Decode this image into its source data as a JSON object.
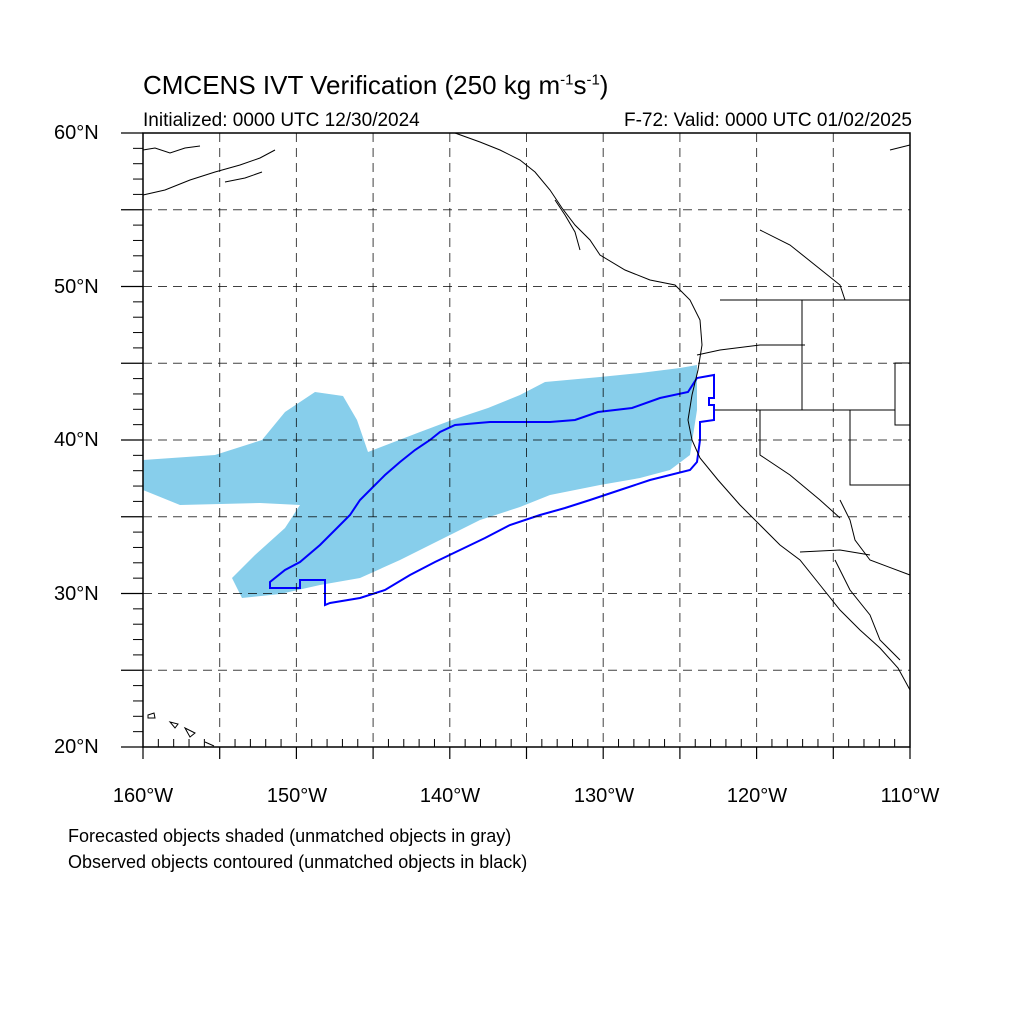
{
  "title": {
    "prefix": "CMCENS IVT Verification (250 kg m",
    "sup1": "-1",
    "middle": "s",
    "sup2": "-1",
    "suffix": ")"
  },
  "subtitle_left": "Initialized: 0000 UTC 12/30/2024",
  "subtitle_right": "F-72: Valid: 0000 UTC 01/02/2025",
  "lat_labels": [
    "60°N",
    "50°N",
    "40°N",
    "30°N",
    "20°N"
  ],
  "lon_labels": [
    "160°W",
    "150°W",
    "140°W",
    "130°W",
    "120°W",
    "110°W"
  ],
  "footnotes": [
    "Forecasted objects shaded (unmatched objects in gray)",
    "Observed objects contoured (unmatched objects in black)"
  ],
  "map": {
    "lon_range": [
      -160,
      -110
    ],
    "lat_range": [
      20,
      60
    ],
    "grid_spacing_deg": 5,
    "forecast_fill_color": "#87ceeb",
    "observed_contour_color": "#0000ff",
    "coastline_color": "#000000"
  }
}
